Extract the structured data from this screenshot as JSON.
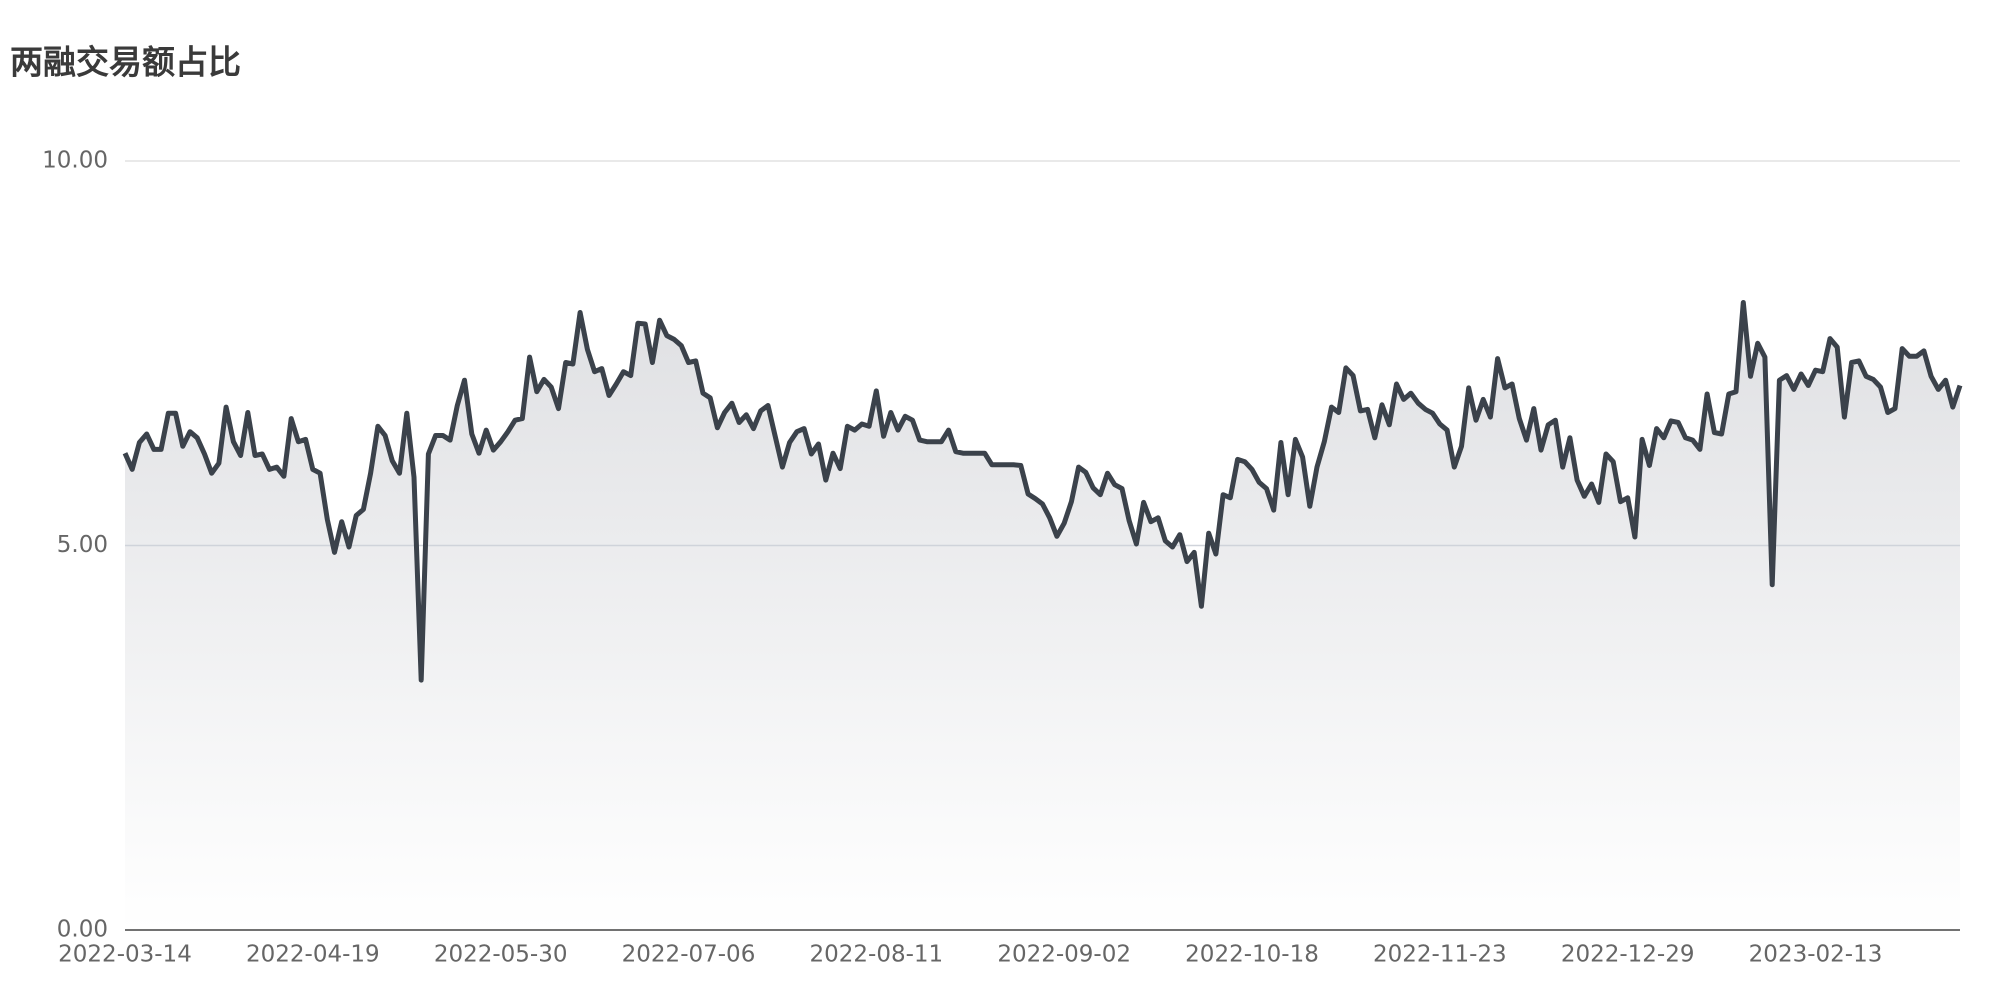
{
  "chart_data": {
    "type": "area",
    "title": "两融交易额占比",
    "color": "#3b424b",
    "grid": true,
    "ylim": [
      0,
      10
    ],
    "yticks": [
      {
        "value": 0,
        "label": "0.00"
      },
      {
        "value": 5,
        "label": "5.00"
      },
      {
        "value": 10,
        "label": "10.00"
      }
    ],
    "categories": [
      "2022-03-14",
      null,
      null,
      null,
      null,
      null,
      null,
      null,
      null,
      null,
      null,
      null,
      null,
      null,
      null,
      null,
      null,
      null,
      null,
      null,
      null,
      null,
      null,
      null,
      null,
      null,
      "2022-04-19",
      null,
      null,
      null,
      null,
      null,
      null,
      null,
      null,
      null,
      null,
      null,
      null,
      null,
      null,
      null,
      null,
      null,
      null,
      null,
      null,
      null,
      null,
      null,
      null,
      null,
      "2022-05-30",
      null,
      null,
      null,
      null,
      null,
      null,
      null,
      null,
      null,
      null,
      null,
      null,
      null,
      null,
      null,
      null,
      null,
      null,
      null,
      null,
      null,
      null,
      null,
      null,
      null,
      "2022-07-06",
      null,
      null,
      null,
      null,
      null,
      null,
      null,
      null,
      null,
      null,
      null,
      null,
      null,
      null,
      null,
      null,
      null,
      null,
      null,
      null,
      null,
      null,
      null,
      null,
      null,
      "2022-08-11",
      null,
      null,
      null,
      null,
      null,
      null,
      null,
      null,
      null,
      null,
      null,
      null,
      null,
      null,
      null,
      null,
      null,
      null,
      null,
      null,
      null,
      null,
      null,
      null,
      null,
      "2022-09-02",
      null,
      null,
      null,
      null,
      null,
      null,
      null,
      null,
      null,
      null,
      null,
      null,
      null,
      null,
      null,
      null,
      null,
      null,
      null,
      null,
      null,
      null,
      null,
      null,
      null,
      "2022-10-18",
      null,
      null,
      null,
      null,
      null,
      null,
      null,
      null,
      null,
      null,
      null,
      null,
      null,
      null,
      null,
      null,
      null,
      null,
      null,
      null,
      null,
      null,
      null,
      null,
      null,
      "2022-11-23",
      null,
      null,
      null,
      null,
      null,
      null,
      null,
      null,
      null,
      null,
      null,
      null,
      null,
      null,
      null,
      null,
      null,
      null,
      null,
      null,
      null,
      null,
      null,
      null,
      null,
      "2022-12-29",
      null,
      null,
      null,
      null,
      null,
      null,
      null,
      null,
      null,
      null,
      null,
      null,
      null,
      null,
      null,
      null,
      null,
      null,
      null,
      null,
      null,
      null,
      null,
      null,
      null,
      "2023-02-13",
      null,
      null,
      null,
      null,
      null,
      null,
      null,
      null,
      null,
      null,
      null,
      null,
      null,
      null,
      null,
      null,
      null,
      null,
      null,
      null
    ],
    "values": [
      6.2,
      5.99,
      6.34,
      6.45,
      6.25,
      6.25,
      6.72,
      6.72,
      6.29,
      6.48,
      6.4,
      6.19,
      5.94,
      6.07,
      6.8,
      6.35,
      6.17,
      6.73,
      6.17,
      6.19,
      5.99,
      6.02,
      5.9,
      6.65,
      6.35,
      6.38,
      5.99,
      5.94,
      5.34,
      4.91,
      5.31,
      4.98,
      5.39,
      5.47,
      5.94,
      6.55,
      6.43,
      6.1,
      5.94,
      6.72,
      5.89,
      3.25,
      6.19,
      6.43,
      6.43,
      6.37,
      6.82,
      7.15,
      6.45,
      6.2,
      6.5,
      6.24,
      6.35,
      6.48,
      6.63,
      6.65,
      7.45,
      7.0,
      7.16,
      7.06,
      6.78,
      7.38,
      7.36,
      8.03,
      7.55,
      7.26,
      7.3,
      6.95,
      7.1,
      7.26,
      7.21,
      7.89,
      7.88,
      7.38,
      7.93,
      7.73,
      7.68,
      7.6,
      7.38,
      7.4,
      6.98,
      6.92,
      6.53,
      6.73,
      6.85,
      6.6,
      6.7,
      6.52,
      6.75,
      6.82,
      6.42,
      6.02,
      6.34,
      6.48,
      6.52,
      6.19,
      6.32,
      5.85,
      6.2,
      6.0,
      6.55,
      6.5,
      6.58,
      6.55,
      7.01,
      6.42,
      6.73,
      6.5,
      6.68,
      6.63,
      6.37,
      6.35,
      6.35,
      6.35,
      6.5,
      6.22,
      6.2,
      6.2,
      6.2,
      6.2,
      6.05,
      6.05,
      6.05,
      6.05,
      6.04,
      5.67,
      5.61,
      5.54,
      5.36,
      5.12,
      5.29,
      5.57,
      6.02,
      5.95,
      5.75,
      5.66,
      5.94,
      5.79,
      5.74,
      5.32,
      5.02,
      5.56,
      5.31,
      5.36,
      5.06,
      4.98,
      5.14,
      4.79,
      4.91,
      4.21,
      5.16,
      4.89,
      5.66,
      5.62,
      6.12,
      6.09,
      5.99,
      5.82,
      5.74,
      5.46,
      6.34,
      5.66,
      6.38,
      6.15,
      5.51,
      6.02,
      6.35,
      6.8,
      6.73,
      7.31,
      7.21,
      6.75,
      6.77,
      6.4,
      6.83,
      6.57,
      7.1,
      6.9,
      6.98,
      6.85,
      6.77,
      6.72,
      6.58,
      6.5,
      6.02,
      6.29,
      7.05,
      6.63,
      6.9,
      6.67,
      7.43,
      7.05,
      7.1,
      6.65,
      6.37,
      6.78,
      6.24,
      6.57,
      6.63,
      6.02,
      6.4,
      5.85,
      5.64,
      5.8,
      5.56,
      6.19,
      6.09,
      5.57,
      5.62,
      5.11,
      6.38,
      6.04,
      6.52,
      6.4,
      6.62,
      6.6,
      6.4,
      6.37,
      6.25,
      6.97,
      6.47,
      6.45,
      6.97,
      7.0,
      8.16,
      7.2,
      7.63,
      7.45,
      4.49,
      7.15,
      7.21,
      7.03,
      7.23,
      7.08,
      7.28,
      7.26,
      7.69,
      7.58,
      6.67,
      7.38,
      7.4,
      7.2,
      7.16,
      7.06,
      6.73,
      6.78,
      7.56,
      7.46,
      7.46,
      7.53,
      7.2,
      7.03,
      7.15,
      6.8,
      7.08
    ]
  }
}
